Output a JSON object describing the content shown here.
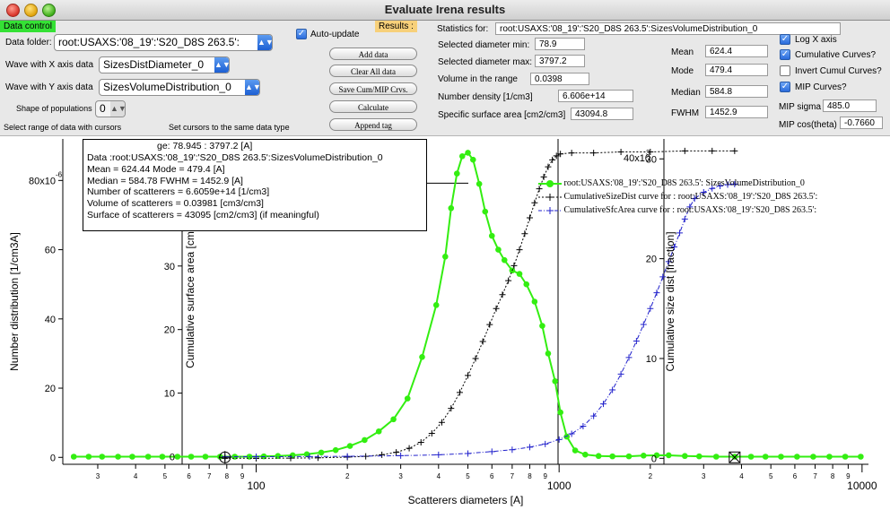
{
  "window": {
    "title": "Evaluate Irena results"
  },
  "panel": {
    "data_control_tab": "Data control",
    "data_folder_label": "Data folder:",
    "data_folder_value": "root:USAXS:'08_19':'S20_D8S 263.5':",
    "x_wave_label": "Wave with X axis data",
    "x_wave_value": "SizesDistDiameter_0",
    "y_wave_label": "Wave with Y axis data",
    "y_wave_value": "SizesVolumeDistribution_0",
    "shape_label": "Shape of populations",
    "shape_value": "0",
    "select_range_note": "Select range of data with cursors",
    "cursors_note": "Set cursors to the same data type",
    "auto_update_label": "Auto-update",
    "buttons": {
      "add_data": "Add data",
      "clear_all": "Clear All data",
      "save_cum": "Save Cum/MIP Crvs.",
      "calculate": "Calculate",
      "append_tag": "Append tag"
    },
    "results_tab": "Results :",
    "stats_label": "Statistics for:",
    "stats_value": "root:USAXS:'08_19':'S20_D8S 263.5':SizesVolumeDistribution_0",
    "fields": {
      "dmin_label": "Selected diameter min:",
      "dmin_value": "78.9",
      "dmax_label": "Selected diameter max:",
      "dmax_value": "3797.2",
      "vol_label": "Volume in the range",
      "vol_value": "0.0398",
      "numdens_label": "Number density [1/cm3]",
      "numdens_value": "6.606e+14",
      "ssa_label": "Specific surface area [cm2/cm3]",
      "ssa_value": "43094.8",
      "mean_label": "Mean",
      "mean_value": "624.4",
      "mode_label": "Mode",
      "mode_value": "479.4",
      "median_label": "Median",
      "median_value": "584.8",
      "fwhm_label": "FWHM",
      "fwhm_value": "1452.9"
    },
    "checks": {
      "logx": "Log X axis",
      "cumul": "Cumulative Curves?",
      "invert": "Invert Cumul Curves?",
      "mip": "MIP Curves?"
    },
    "mip_sigma_label": "MIP sigma",
    "mip_sigma_value": "485.0",
    "mip_cos_label": "MIP cos(theta)",
    "mip_cos_value": "-0.7660"
  },
  "infobox": {
    "lines": [
      "Data :root:USAXS:'08_19':'S20_D8S 263.5':SizesVolumeDistribution_0",
      "Mean = 624.44        Mode = 479.4 [A]",
      "Median = 584.78      FWHM = 1452.9 [A]",
      "Number of scatterers = 6.6059e+14 [1/cm3]",
      "Volume of scatterers = 0.03981 [cm3/cm3]",
      "Surface of scatterers = 43095 [cm2/cm3] (if meaningful)"
    ],
    "range_fragment": "ge: 78.945  :  3797.2  [A]"
  },
  "chart_data": {
    "type": "line",
    "xlabel": "Scatterers diameters [A]",
    "ylabel_left": "Number distribution [1/cm3A]",
    "ylabel_surface": "Cumulative surface area [cm2/cm3]",
    "ylabel_size": "Cumulative size dist [fraction]",
    "x_log": true,
    "xlim": [
      23,
      10500
    ],
    "left_axis": {
      "ylim": [
        -2,
        92
      ],
      "ticks": [
        0,
        20,
        40,
        60,
        80
      ],
      "tick_labels": [
        "0",
        "20",
        "40",
        "60",
        "80x10"
      ],
      "exponent_label": "-6"
    },
    "surface_axis": {
      "ylim": [
        -1.2,
        50
      ],
      "ticks": [
        0,
        10,
        20,
        30
      ],
      "top_label": "40x10",
      "top_label_exp": "3"
    },
    "size_axis": {
      "ylim": [
        -0.6,
        32
      ],
      "ticks": [
        0,
        10,
        20,
        30
      ]
    },
    "x_ticks_major": [
      100,
      1000,
      10000
    ],
    "x_tick_labels": [
      "100",
      "1000",
      "10000"
    ],
    "x_minor_labels": [
      "3",
      "4",
      "5",
      "6",
      "7",
      "8",
      "9",
      "2",
      "3",
      "4",
      "5",
      "6",
      "7",
      "8",
      "9",
      "2",
      "3",
      "4",
      "5",
      "6",
      "7",
      "8",
      "9"
    ],
    "series": [
      {
        "name": "root:USAXS:'08_19':'S20_D8S 263.5': SizesVolumeDistribution_0",
        "color": "#33ee11",
        "marker": "circle",
        "x": [
          25,
          28,
          31,
          35,
          39,
          44,
          49,
          55,
          61,
          68,
          76,
          85,
          95,
          106,
          118,
          132,
          147,
          164,
          183,
          204,
          228,
          254,
          284,
          316,
          353,
          393,
          421,
          440,
          460,
          479,
          500,
          520,
          545,
          570,
          600,
          630,
          660,
          700,
          740,
          780,
          830,
          880,
          920,
          970,
          1010,
          1060,
          1130,
          1220,
          1350,
          1500,
          1700,
          1900,
          2100,
          2300,
          2600,
          2900,
          3300,
          3800,
          4300,
          4800,
          5400,
          6100,
          6900,
          7800,
          8800,
          9900
        ],
        "y": [
          0.2,
          0.2,
          0.2,
          0.2,
          0.2,
          0.2,
          0.2,
          0.2,
          0.2,
          0.2,
          0.2,
          0.2,
          0.2,
          0.3,
          0.4,
          0.6,
          0.9,
          1.4,
          2.1,
          3.3,
          5,
          7.5,
          11,
          17,
          29,
          44,
          58,
          72,
          82,
          87,
          88,
          86,
          79,
          71,
          64,
          60,
          57,
          54,
          53,
          50,
          45,
          38,
          30,
          22,
          13,
          6,
          2,
          0.8,
          0.4,
          0.3,
          0.3,
          0.5,
          0.6,
          0.6,
          0.4,
          0.3,
          0.2,
          0.2,
          0.2,
          0.2,
          0.2,
          0.2,
          0.2,
          0.2,
          0.2,
          0.2
        ]
      },
      {
        "name": "CumulativeSizeDist curve for :   root:USAXS:'08_19':'S20_D8S 263.5':",
        "color": "#000000",
        "marker": "plus",
        "x": [
          78.9,
          100,
          130,
          160,
          200,
          230,
          260,
          290,
          320,
          350,
          380,
          410,
          440,
          470,
          500,
          530,
          560,
          590,
          620,
          650,
          680,
          710,
          740,
          770,
          800,
          830,
          860,
          890,
          920,
          950,
          980,
          1010,
          1100,
          1300,
          1600,
          2000,
          2600,
          3200,
          3797
        ],
        "y": [
          0,
          0,
          0.02,
          0.05,
          0.12,
          0.2,
          0.35,
          0.6,
          1.0,
          1.6,
          2.5,
          3.6,
          5.0,
          6.6,
          8.3,
          10.0,
          11.7,
          13.4,
          15.0,
          16.4,
          17.8,
          19.3,
          20.9,
          22.5,
          24.1,
          25.6,
          27.0,
          28.2,
          29.2,
          29.9,
          30.3,
          30.5,
          30.6,
          30.6,
          30.7,
          30.7,
          30.8,
          30.8,
          30.8
        ]
      },
      {
        "name": "CumulativeSfcArea curve for :   root:USAXS:'08_19':'S20_D8S 263.5':",
        "color": "#2222cc",
        "marker": "plus",
        "x": [
          78.9,
          100,
          150,
          200,
          300,
          400,
          500,
          600,
          700,
          800,
          900,
          1000,
          1100,
          1200,
          1300,
          1400,
          1500,
          1600,
          1700,
          1800,
          1900,
          2000,
          2100,
          2200,
          2300,
          2400,
          2500,
          2600,
          2700,
          2800,
          3000,
          3200,
          3400,
          3600,
          3797
        ],
        "y": [
          0,
          0,
          0.02,
          0.05,
          0.15,
          0.3,
          0.5,
          0.8,
          1.1,
          1.5,
          2.0,
          2.7,
          3.6,
          4.8,
          6.4,
          8.3,
          10.5,
          13.0,
          15.6,
          18.2,
          20.8,
          23.3,
          25.8,
          28.3,
          30.7,
          33.0,
          35.2,
          37.4,
          39.3,
          40.6,
          41.6,
          42.2,
          42.6,
          42.8,
          42.9
        ]
      }
    ],
    "colors": {
      "green": "#33ee11",
      "black": "#000000",
      "blue": "#2222cc"
    }
  }
}
